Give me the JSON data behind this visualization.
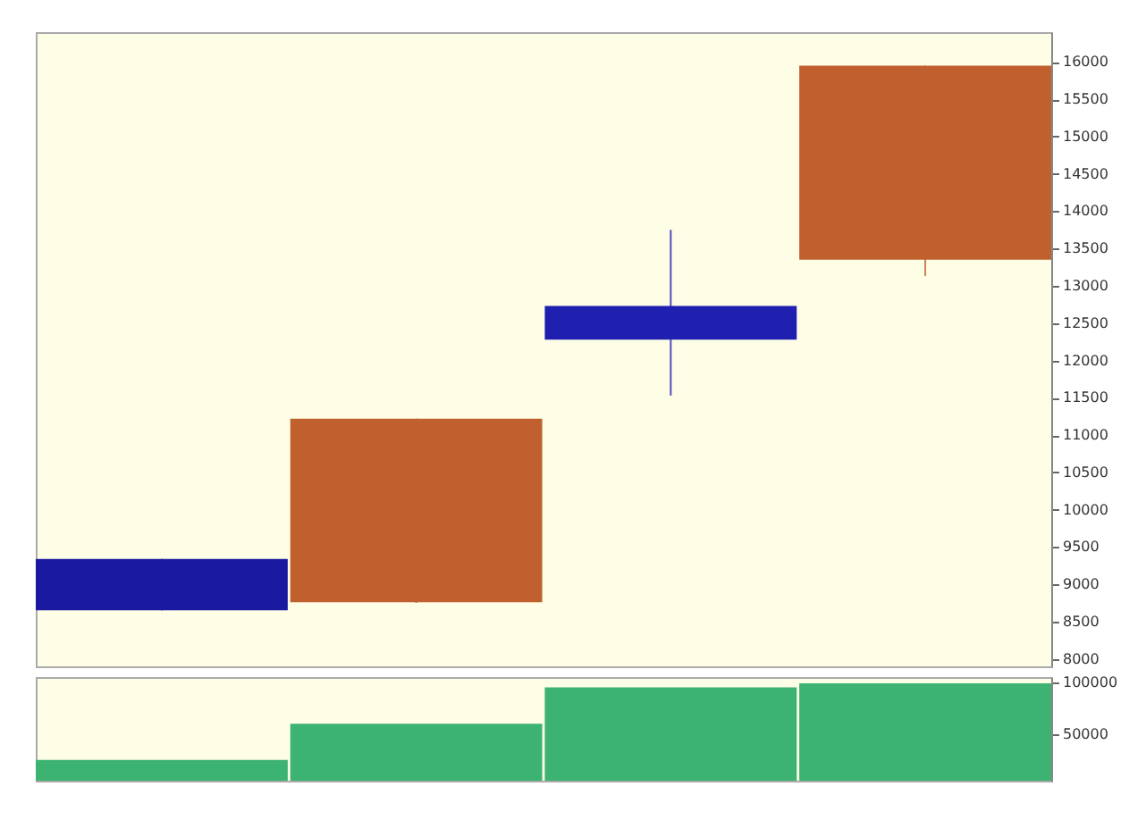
{
  "chart_data": [
    {
      "type": "candlestick",
      "categories": [
        null,
        null,
        null,
        null
      ],
      "ohlc": [
        [
          9340,
          9340,
          8650,
          8650
        ],
        [
          8760,
          11220,
          8750,
          11220
        ],
        [
          12730,
          13750,
          11530,
          12280
        ],
        [
          13350,
          15950,
          13130,
          15950
        ]
      ],
      "colors": [
        "#1a1aa0",
        "#c0602e",
        "#2020b0",
        "#c0602e"
      ],
      "ylim": [
        7900,
        16400
      ],
      "yticks": [
        8000,
        8500,
        9000,
        9500,
        10000,
        10500,
        11000,
        11500,
        12000,
        12500,
        13000,
        13500,
        14000,
        14500,
        15000,
        15500,
        16000
      ],
      "tick_labels": "y",
      "grid": false
    },
    {
      "type": "bar",
      "categories": [
        null,
        null,
        null,
        null
      ],
      "values": [
        25000,
        60000,
        95000,
        99000
      ],
      "colors": [
        "#3cb371",
        "#3cb371",
        "#3cb371",
        "#3cb371"
      ],
      "ylim": [
        5000,
        105000
      ],
      "yticks": [
        50000,
        100000
      ],
      "tick_labels": "y",
      "grid": false
    }
  ]
}
